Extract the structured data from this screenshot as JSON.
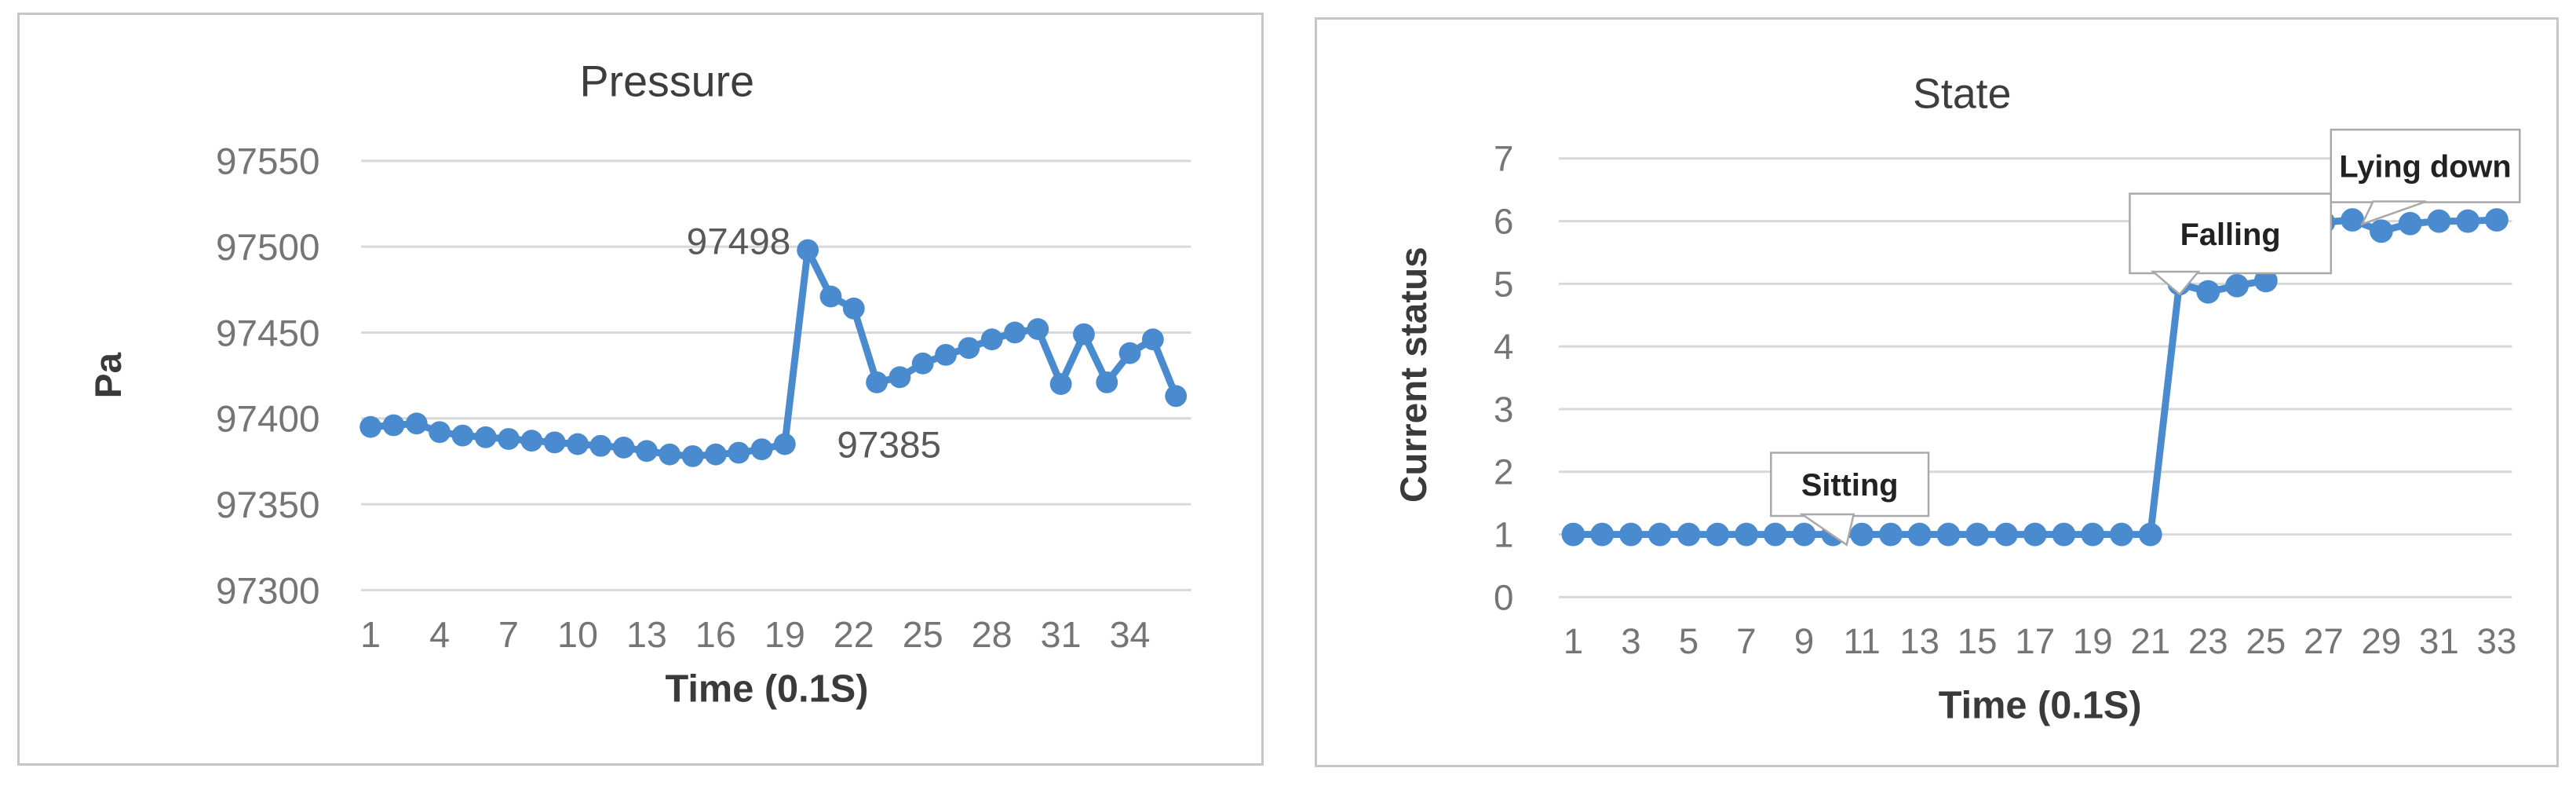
{
  "colors": {
    "line": "#4A8BD0",
    "grid": "#D8D8D8",
    "tick_label": "#757575",
    "title": "#3D3D3D",
    "axis_title": "#3A3A3A",
    "annotation": "#595959",
    "callout_border": "#A8A8A8",
    "callout_fill": "#FFFFFF",
    "callout_text": "#222222",
    "panel_border": "#C8C6C4",
    "background": "#FFFFFF"
  },
  "chart_data": [
    {
      "type": "line",
      "title": "Pressure",
      "ylabel": "Pa",
      "xlabel": "Time (0.1S)",
      "grid": true,
      "legend_position": "none",
      "ylim": [
        97300,
        97550
      ],
      "yticks": [
        97550,
        97500,
        97450,
        97400,
        97350,
        97300
      ],
      "xticks": [
        1,
        4,
        7,
        10,
        13,
        16,
        19,
        22,
        25,
        28,
        31,
        34
      ],
      "x": [
        1,
        2,
        3,
        4,
        5,
        6,
        7,
        8,
        9,
        10,
        11,
        12,
        13,
        14,
        15,
        16,
        17,
        18,
        19,
        20,
        21,
        22,
        23,
        24,
        25,
        26,
        27,
        28,
        29,
        30,
        31,
        32,
        33,
        34,
        35,
        36
      ],
      "values": [
        97395,
        97396,
        97397,
        97392,
        97390,
        97389,
        97388,
        97387,
        97386,
        97385,
        97384,
        97383,
        97381,
        97379,
        97378,
        97379,
        97380,
        97382,
        97385,
        97498,
        97471,
        97464,
        97421,
        97424,
        97432,
        97437,
        97441,
        97446,
        97450,
        97452,
        97420,
        97449,
        97421,
        97438,
        97446,
        97413
      ],
      "annotations": [
        {
          "text": "97498",
          "x": 20
        },
        {
          "text": "97385",
          "x": 19
        }
      ]
    },
    {
      "type": "line",
      "title": "State",
      "ylabel": "Current status",
      "xlabel": "Time (0.1S)",
      "grid": true,
      "legend_position": "none",
      "ylim": [
        0,
        7
      ],
      "yticks": [
        7,
        6,
        5,
        4,
        3,
        2,
        1,
        0
      ],
      "xticks": [
        1,
        3,
        5,
        7,
        9,
        11,
        13,
        15,
        17,
        19,
        21,
        23,
        25,
        27,
        29,
        31,
        33
      ],
      "x": [
        1,
        2,
        3,
        4,
        5,
        6,
        7,
        8,
        9,
        10,
        11,
        12,
        13,
        14,
        15,
        16,
        17,
        18,
        19,
        20,
        21,
        22,
        23,
        24,
        25,
        26,
        27,
        28,
        29,
        30,
        31,
        32,
        33
      ],
      "values": [
        1,
        1,
        1,
        1,
        1,
        1,
        1,
        1,
        1,
        1,
        1,
        1,
        1,
        1,
        1,
        1,
        1,
        1,
        1,
        1,
        1,
        5,
        4.87,
        4.97,
        5.05,
        6.02,
        5.98,
        6.02,
        5.84,
        5.96,
        6,
        6,
        6.02
      ],
      "callouts": [
        {
          "label": "Sitting",
          "x": 10
        },
        {
          "label": "Falling",
          "x": 22
        },
        {
          "label": "Lying down",
          "x": 29
        }
      ]
    }
  ]
}
